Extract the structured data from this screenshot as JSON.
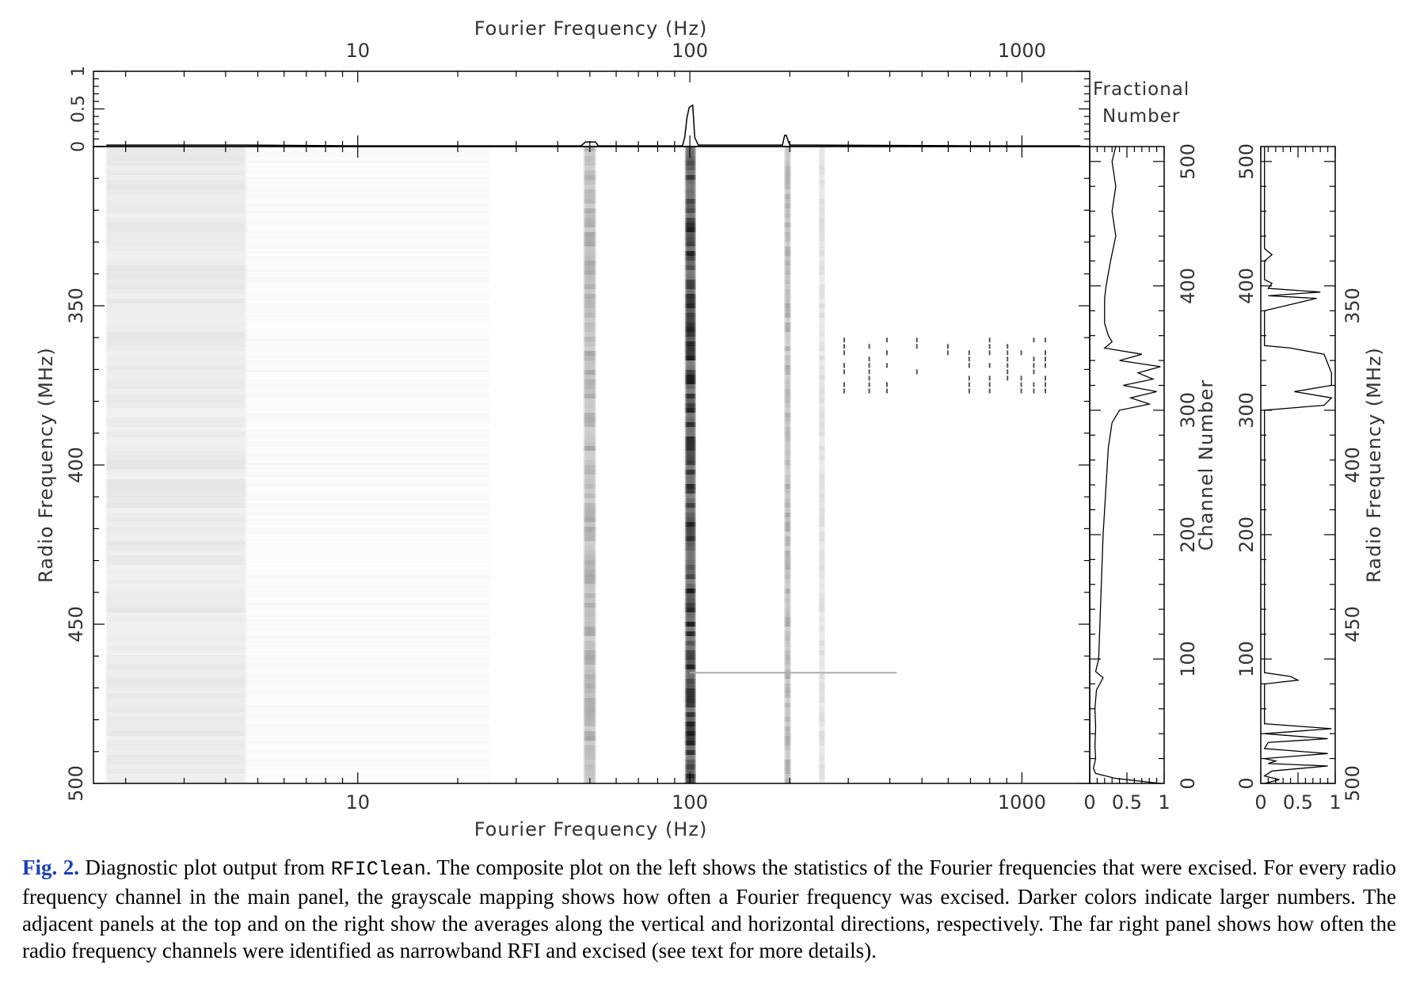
{
  "colors": {
    "ink": "#000000",
    "label": "#333333",
    "fig_label": "#1a3fb8"
  },
  "figure": {
    "top_axis_title": "Fourier Frequency (Hz)",
    "bottom_axis_title": "Fourier Frequency (Hz)",
    "left_axis_title": "Radio Frequency (MHz)",
    "fractional_label_1": "Fractional",
    "fractional_label_2": "Number",
    "channel_axis_title": "Channel Number",
    "far_right_axis_title": "Radio Frequency (MHz)"
  },
  "chart_data": [
    {
      "type": "heatmap",
      "name": "main",
      "x_scale": "log",
      "xlim": [
        1.6,
        1600
      ],
      "x_ticks": [
        "10",
        "100",
        "1000"
      ],
      "y_scale": "linear",
      "ylim": [
        500,
        300
      ],
      "y_ticks": [
        "350",
        "400",
        "450",
        "500"
      ],
      "xlabel": "Fourier Frequency (Hz)",
      "ylabel": "Radio Frequency (MHz)",
      "colormap": "grayscale (darker = larger numbers)",
      "features": [
        {
          "x": [
            1.75,
            4.6
          ],
          "intensity": 0.1,
          "rows": "all"
        },
        {
          "x": [
            48,
            52
          ],
          "intensity": 0.35,
          "rows": "all"
        },
        {
          "x": [
            97,
            104
          ],
          "intensity": 0.9,
          "rows": "all"
        },
        {
          "x": [
            193,
            201
          ],
          "intensity": 0.35,
          "rows": "all"
        },
        {
          "x": [
            245,
            255
          ],
          "intensity": 0.15,
          "rows": "all"
        },
        {
          "x": [
            290,
            1200
          ],
          "intensity": 0.7,
          "rows": "harmonic comb near 360-375 MHz"
        },
        {
          "x": [
            100,
            400
          ],
          "intensity": 0.5,
          "rows": "near 465 MHz"
        }
      ]
    },
    {
      "type": "line",
      "name": "top_average",
      "x_scale": "log",
      "xlim": [
        1.6,
        1600
      ],
      "x_ticks": [
        "10",
        "100",
        "1000"
      ],
      "ylim": [
        0,
        1
      ],
      "y_ticks": [
        "0",
        "0.5",
        "1"
      ],
      "xlabel": "Fourier Frequency (Hz)",
      "ylabel": "Fractional Number",
      "x": [
        1.75,
        4.6,
        10,
        40,
        47,
        48.5,
        52,
        53,
        95,
        96.5,
        98,
        99.5,
        102,
        103.5,
        106,
        190,
        193,
        195,
        200,
        800,
        1200,
        1500
      ],
      "y": [
        0.02,
        0.02,
        0.01,
        0.01,
        0.01,
        0.06,
        0.06,
        0.01,
        0.01,
        0.12,
        0.38,
        0.52,
        0.55,
        0.12,
        0.02,
        0.02,
        0.15,
        0.15,
        0.02,
        0.01,
        0.01,
        0.01
      ]
    },
    {
      "type": "line",
      "name": "right_average",
      "xlim": [
        0,
        1
      ],
      "x_ticks": [
        "0",
        "0.5",
        "1"
      ],
      "ylim": [
        0,
        512
      ],
      "y_ticks": [
        "0",
        "100",
        "200",
        "300",
        "400",
        "500"
      ],
      "xlabel": "Fractional Number",
      "ylabel": "Channel Number",
      "channel": [
        0,
        4,
        8,
        12,
        20,
        30,
        45,
        60,
        75,
        85,
        90,
        95,
        100,
        150,
        200,
        240,
        270,
        290,
        300,
        305,
        310,
        315,
        320,
        325,
        330,
        335,
        340,
        345,
        350,
        355,
        360,
        370,
        390,
        400,
        420,
        440,
        460,
        480,
        500,
        512
      ],
      "fraction": [
        0.95,
        0.35,
        0.08,
        0.05,
        0.08,
        0.07,
        0.08,
        0.07,
        0.09,
        0.18,
        0.08,
        0.1,
        0.12,
        0.15,
        0.18,
        0.22,
        0.25,
        0.3,
        0.4,
        0.8,
        0.55,
        0.9,
        0.45,
        0.85,
        0.65,
        0.95,
        0.4,
        0.7,
        0.2,
        0.3,
        0.25,
        0.2,
        0.2,
        0.22,
        0.28,
        0.35,
        0.3,
        0.35,
        0.3,
        0.35
      ]
    },
    {
      "type": "line",
      "name": "far_right_narrowband",
      "xlim": [
        0,
        1
      ],
      "x_ticks": [
        "0",
        "0.5",
        "1"
      ],
      "ylim": [
        0,
        512
      ],
      "y_ticks": [
        "0",
        "100",
        "200",
        "300",
        "400",
        "500"
      ],
      "y2_ticks": [
        "350",
        "400",
        "450",
        "500"
      ],
      "xlabel": "",
      "ylabel": "Radio Frequency (MHz)",
      "channel": [
        0,
        3,
        6,
        10,
        14,
        16,
        18,
        20,
        24,
        28,
        33,
        36,
        40,
        44,
        48,
        80,
        83,
        86,
        89,
        300,
        304,
        310,
        315,
        320,
        330,
        345,
        350,
        352,
        355,
        360,
        365,
        380,
        390,
        392,
        395,
        398,
        402,
        405,
        420,
        425,
        430,
        435,
        512
      ],
      "fraction": [
        0.05,
        0.25,
        0.05,
        0.15,
        0.9,
        0.1,
        0.2,
        0.05,
        0.9,
        0.05,
        0.1,
        0.9,
        0.05,
        0.95,
        0.05,
        0.05,
        0.5,
        0.4,
        0.05,
        0.05,
        0.85,
        0.95,
        0.45,
        0.95,
        0.95,
        0.85,
        0.4,
        0.05,
        0.05,
        0.05,
        0.05,
        0.05,
        0.75,
        0.1,
        0.8,
        0.1,
        0.15,
        0.05,
        0.05,
        0.15,
        0.05,
        0.05,
        0.05
      ]
    }
  ],
  "caption": {
    "label": "Fig. 2.",
    "text_1": " Diagnostic plot output from ",
    "code": "RFIClean",
    "text_2": ". The composite plot on the left shows the statistics of the Fourier frequencies that were excised. For every radio frequency channel in the main panel, the grayscale mapping shows how often a Fourier frequency was excised. Darker colors indicate larger numbers. The adjacent panels at the top and on the right show the averages along the vertical and horizontal directions, respectively. The far right panel shows how often the radio frequency channels were identified as narrowband RFI and excised (see text for more details)."
  }
}
